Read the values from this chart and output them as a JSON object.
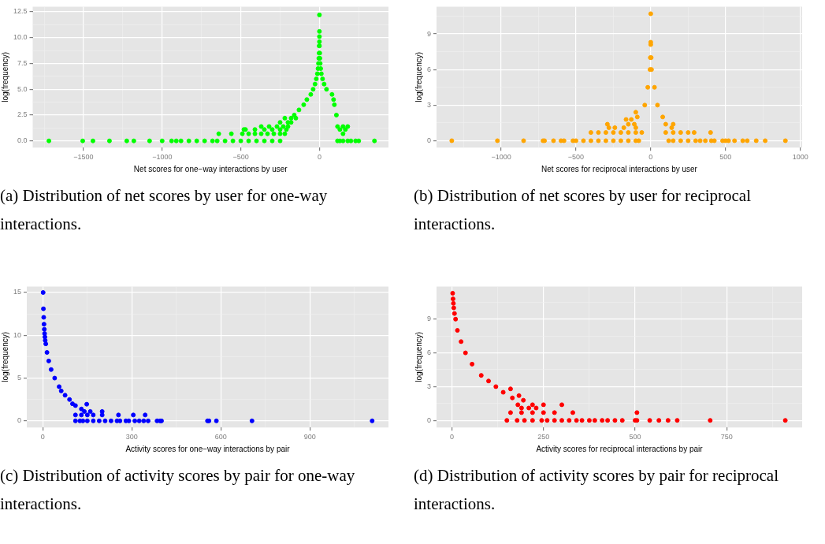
{
  "chart_data": [
    {
      "type": "scatter",
      "xlabel": "Net scores for one−way interactions by user",
      "ylabel": "log(frequency)",
      "color": "#00ff00",
      "marker": "circle",
      "grid": true,
      "x": [
        -1720,
        -1505,
        -1440,
        -1335,
        -1225,
        -1180,
        -1080,
        -1000,
        -940,
        -910,
        -880,
        -830,
        -780,
        -730,
        -680,
        -650,
        -600,
        -550,
        -500,
        -450,
        -400,
        -350,
        -300,
        -250,
        -640,
        -560,
        -490,
        -450,
        -410,
        -370,
        -330,
        -290,
        -250,
        -220,
        150,
        -480,
        -470,
        -410,
        -350,
        -300,
        -250,
        -210,
        130,
        165,
        -370,
        -320,
        -270,
        -230,
        -200,
        115,
        150,
        180,
        -250,
        -200,
        -180,
        -220,
        -180,
        -150,
        -160,
        108,
        -130,
        -100,
        95,
        -80,
        90,
        -55,
        80,
        -40,
        45,
        -28,
        30,
        -20,
        20,
        -13,
        12,
        -9,
        8,
        -6,
        5,
        -4,
        3,
        -2,
        2,
        -1,
        0,
        0,
        0,
        0,
        0,
        115,
        130,
        150,
        180,
        200,
        230,
        250,
        350
      ],
      "values": [
        0,
        0,
        0,
        0,
        0,
        0,
        0,
        0,
        0,
        0,
        0,
        0,
        0,
        0,
        0,
        0,
        0,
        0,
        0,
        0,
        0,
        0,
        0,
        0,
        0.69,
        0.69,
        0.69,
        0.69,
        0.69,
        0.69,
        0.69,
        0.69,
        0.69,
        0.69,
        0.69,
        1.1,
        1.1,
        1.1,
        1.1,
        1.1,
        1.1,
        1.1,
        1.1,
        1.1,
        1.39,
        1.39,
        1.39,
        1.39,
        1.39,
        1.39,
        1.39,
        1.39,
        1.79,
        1.79,
        1.79,
        2.2,
        2.2,
        2.2,
        2.5,
        2.5,
        3,
        3.5,
        3.5,
        4,
        4,
        4.5,
        4.5,
        5,
        5,
        5.5,
        5.5,
        6,
        6,
        6.5,
        6.5,
        7,
        7,
        7.5,
        7.5,
        8,
        8,
        8.5,
        8.5,
        9.2,
        12.2,
        10.6,
        10.1,
        9.6,
        9.2,
        0,
        0,
        0,
        0,
        0,
        0,
        0,
        0
      ],
      "xlim": [
        -1823,
        439
      ],
      "xticks": [
        {
          "value": -1750,
          "label": null
        },
        {
          "value": -1500,
          "label": "−1500"
        },
        {
          "value": -1250,
          "label": null
        },
        {
          "value": -1000,
          "label": "−1000"
        },
        {
          "value": -750,
          "label": null
        },
        {
          "value": -500,
          "label": "−500"
        },
        {
          "value": -250,
          "label": null
        },
        0,
        {
          "value": 250,
          "label": null
        }
      ],
      "ylim": [
        -0.65,
        13
      ],
      "yticks": [
        {
          "value": 0,
          "label": "0.0"
        },
        {
          "value": 1.25,
          "label": null
        },
        {
          "value": 2.5,
          "label": "2.5"
        },
        {
          "value": 3.75,
          "label": null
        },
        {
          "value": 5,
          "label": "5.0"
        },
        {
          "value": 6.25,
          "label": null
        },
        {
          "value": 7.5,
          "label": "7.5"
        },
        {
          "value": 8.75,
          "label": null
        },
        {
          "value": 10,
          "label": "10.0"
        },
        {
          "value": 11.25,
          "label": null
        },
        {
          "value": 12.5,
          "label": "12.5"
        }
      ],
      "annotations": [
        "(a) Distribution of net scores by user for one-way interactions."
      ]
    },
    {
      "type": "scatter",
      "xlabel": "Net scores for reciprocal interactions by user",
      "ylabel": "log(frequency)",
      "color": "#ffa500",
      "marker": "circle",
      "grid": true,
      "x": [
        -1330,
        -1025,
        -850,
        -720,
        -710,
        -650,
        -600,
        -580,
        -520,
        -500,
        -450,
        -400,
        -350,
        -300,
        -250,
        -200,
        -150,
        -100,
        -80,
        120,
        150,
        200,
        250,
        300,
        330,
        365,
        405,
        425,
        480,
        500,
        520,
        560,
        615,
        645,
        705,
        765,
        900,
        -400,
        -350,
        -300,
        -250,
        -200,
        -150,
        -100,
        -60,
        100,
        150,
        200,
        250,
        290,
        400,
        -280,
        -240,
        -180,
        -100,
        140,
        -290,
        -150,
        -110,
        100,
        150,
        -165,
        -130,
        -100,
        -90,
        80,
        -40,
        45,
        -20,
        25,
        -5,
        5,
        -3,
        3,
        0,
        0,
        0
      ],
      "values": [
        0,
        0,
        0,
        0,
        0,
        0,
        0,
        0,
        0,
        0,
        0,
        0,
        0,
        0,
        0,
        0,
        0,
        0,
        0,
        0,
        0,
        0,
        0,
        0,
        0,
        0,
        0,
        0,
        0,
        0,
        0,
        0,
        0,
        0,
        0,
        0,
        0,
        0.69,
        0.69,
        0.69,
        0.69,
        0.69,
        0.69,
        0.69,
        0.69,
        0.69,
        0.69,
        0.69,
        0.69,
        0.69,
        0.69,
        1.1,
        1.1,
        1.1,
        1.1,
        1.1,
        1.39,
        1.39,
        1.39,
        1.39,
        1.39,
        1.79,
        1.79,
        2.4,
        2,
        2,
        3,
        3,
        4.5,
        4.5,
        6,
        6,
        7,
        7,
        8.1,
        8.3,
        10.7
      ],
      "xlim": [
        -1432,
        1012
      ],
      "xticks": [
        {
          "value": -1250,
          "label": null
        },
        {
          "value": -1000,
          "label": "−1000"
        },
        {
          "value": -750,
          "label": null
        },
        {
          "value": -500,
          "label": "−500"
        },
        {
          "value": -250,
          "label": null
        },
        0,
        {
          "value": 250,
          "label": null
        },
        500,
        {
          "value": 750,
          "label": null
        },
        1000
      ],
      "ylim": [
        -0.58,
        11.3
      ],
      "yticks": [
        0,
        {
          "value": 1.5,
          "label": null
        },
        3,
        {
          "value": 4.5,
          "label": null
        },
        6,
        {
          "value": 7.5,
          "label": null
        },
        9,
        {
          "value": 10.5,
          "label": null
        }
      ],
      "annotations": [
        "(b) Distribution of net scores by user for reciprocal interactions."
      ]
    },
    {
      "type": "scatter",
      "xlabel": "Activity scores for one−way interactions by pair",
      "ylabel": "log(frequency)",
      "color": "#0000ff",
      "marker": "circle",
      "grid": true,
      "x": [
        1,
        2,
        3,
        4,
        5,
        6,
        7,
        8,
        10,
        14,
        20,
        28,
        40,
        55,
        62,
        75,
        90,
        100,
        110,
        130,
        140,
        160,
        200,
        148,
        110,
        130,
        150,
        170,
        200,
        255,
        305,
        345,
        110,
        125,
        135,
        150,
        170,
        190,
        210,
        230,
        250,
        260,
        280,
        290,
        310,
        325,
        340,
        355,
        385,
        395,
        400,
        555,
        560,
        585,
        705,
        1110
      ],
      "values": [
        15,
        13.1,
        12.1,
        11.3,
        10.7,
        10.2,
        9.8,
        9.4,
        9,
        8,
        7,
        6,
        5,
        4,
        3.5,
        3,
        2.5,
        2,
        1.79,
        1.39,
        1.1,
        1.1,
        1.1,
        1.95,
        0.69,
        0.69,
        0.69,
        0.69,
        0.69,
        0.69,
        0.69,
        0.69,
        0,
        0,
        0,
        0,
        0,
        0,
        0,
        0,
        0,
        0,
        0,
        0,
        0,
        0,
        0,
        0,
        0,
        0,
        0,
        0,
        0,
        0,
        0,
        0
      ],
      "xlim": [
        -54,
        1165
      ],
      "xticks": [
        0,
        {
          "value": 150,
          "label": null
        },
        300,
        {
          "value": 450,
          "label": null
        },
        600,
        {
          "value": 750,
          "label": null
        },
        900,
        {
          "value": 1050,
          "label": null
        }
      ],
      "ylim": [
        -0.77,
        15.7
      ],
      "yticks": [
        0,
        {
          "value": 2.5,
          "label": null
        },
        5,
        {
          "value": 7.5,
          "label": null
        },
        10,
        {
          "value": 12.5,
          "label": null
        },
        15
      ],
      "annotations": [
        "(c) Distribution of activity scores by pair for one-way interactions."
      ]
    },
    {
      "type": "scatter",
      "xlabel": "Activity scores for reciprocal interactions by pair",
      "ylabel": "log(frequency)",
      "color": "#ff0000",
      "marker": "circle",
      "grid": true,
      "x": [
        2,
        3,
        4,
        5,
        7,
        10,
        15,
        25,
        37,
        55,
        80,
        100,
        120,
        140,
        165,
        160,
        183,
        195,
        180,
        220,
        250,
        300,
        190,
        210,
        230,
        160,
        190,
        220,
        250,
        280,
        330,
        505,
        150,
        178,
        198,
        220,
        245,
        260,
        280,
        300,
        320,
        340,
        355,
        375,
        390,
        410,
        425,
        445,
        465,
        500,
        505,
        540,
        565,
        590,
        615,
        705,
        910
      ],
      "values": [
        11.3,
        10.8,
        10.4,
        10,
        9.5,
        9,
        8,
        7,
        6,
        5,
        4,
        3.5,
        3,
        2.5,
        2,
        2.8,
        2.2,
        1.79,
        1.39,
        1.39,
        1.39,
        1.39,
        1.1,
        1.1,
        1.1,
        0.69,
        0.69,
        0.69,
        0.69,
        0.69,
        0.69,
        0.69,
        0,
        0,
        0,
        0,
        0,
        0,
        0,
        0,
        0,
        0,
        0,
        0,
        0,
        0,
        0,
        0,
        0,
        0,
        0,
        0,
        0,
        0,
        0,
        0,
        0
      ],
      "xlim": [
        -42,
        956
      ],
      "xticks": [
        0,
        {
          "value": 125,
          "label": null
        },
        250,
        {
          "value": 375,
          "label": null
        },
        500,
        {
          "value": 625,
          "label": null
        },
        750,
        {
          "value": 875,
          "label": null
        }
      ],
      "ylim": [
        -0.63,
        11.9
      ],
      "yticks": [
        0,
        {
          "value": 1.5,
          "label": null
        },
        3,
        {
          "value": 4.5,
          "label": null
        },
        6,
        {
          "value": 7.5,
          "label": null
        },
        9,
        {
          "value": 10.5,
          "label": null
        }
      ],
      "annotations": [
        "(d) Distribution of activity scores by pair for reciprocal interactions."
      ]
    }
  ]
}
